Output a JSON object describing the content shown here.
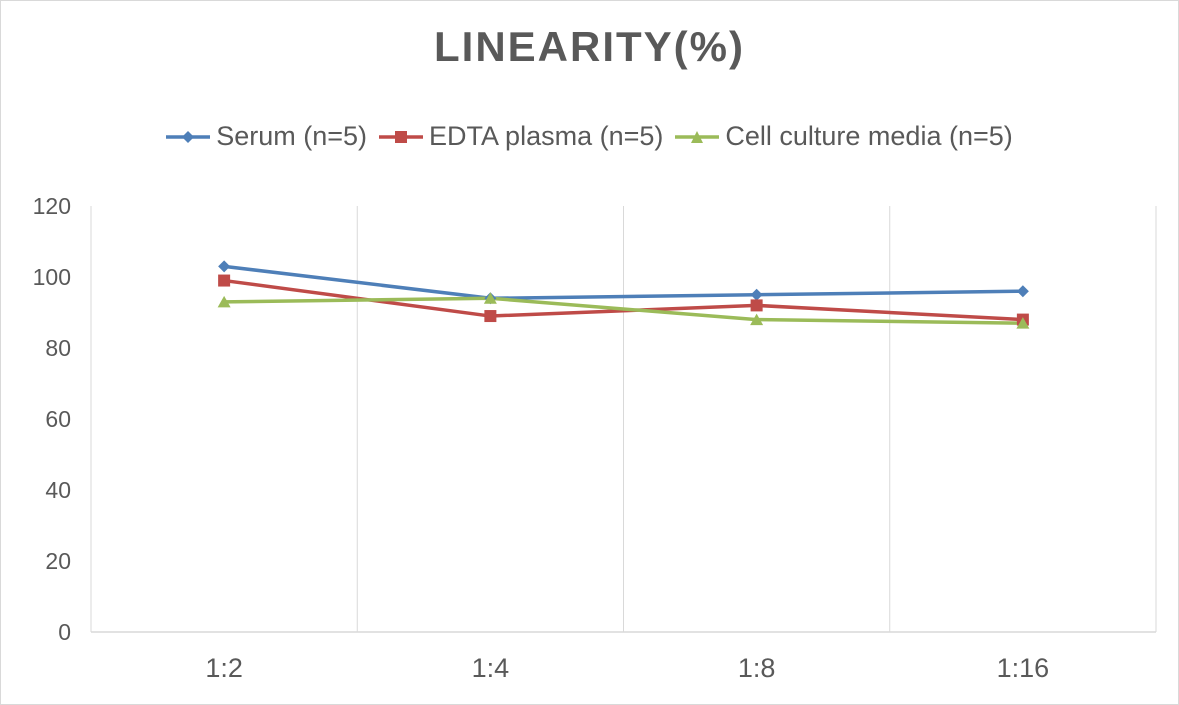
{
  "chart_data": {
    "type": "line",
    "title": "LINEARITY(%)",
    "categories": [
      "1:2",
      "1:4",
      "1:8",
      "1:16"
    ],
    "series": [
      {
        "name": "Serum (n=5)",
        "values": [
          103,
          94,
          95,
          96
        ],
        "color": "#4e7fb8",
        "marker": "diamond"
      },
      {
        "name": "EDTA plasma (n=5)",
        "values": [
          99,
          89,
          92,
          88
        ],
        "color": "#bf4b48",
        "marker": "square"
      },
      {
        "name": "Cell culture media (n=5)",
        "values": [
          93,
          94,
          88,
          87
        ],
        "color": "#9bbb59",
        "marker": "triangle"
      }
    ],
    "y_ticks": [
      "0",
      "20",
      "40",
      "60",
      "80",
      "100",
      "120"
    ],
    "ylim": [
      0,
      120
    ],
    "grid": "vertical",
    "legend_position": "top"
  }
}
